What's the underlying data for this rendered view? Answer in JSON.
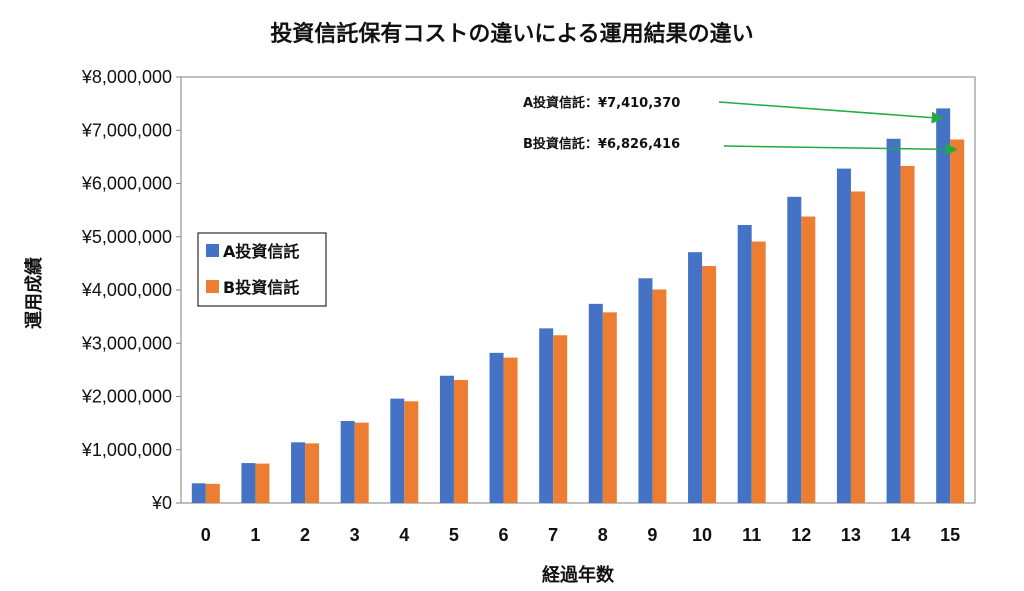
{
  "chart_data": {
    "type": "bar",
    "title": "投資信託保有コストの違いによる運用結果の違い",
    "xlabel": "経過年数",
    "ylabel": "運用成績",
    "categories": [
      "0",
      "1",
      "2",
      "3",
      "4",
      "5",
      "6",
      "7",
      "8",
      "9",
      "10",
      "11",
      "12",
      "13",
      "14",
      "15"
    ],
    "series": [
      {
        "name": "A投資信託",
        "color": "#4472C4",
        "values": [
          370000,
          750000,
          1140000,
          1540000,
          1960000,
          2390000,
          2820000,
          3280000,
          3740000,
          4220000,
          4710000,
          5220000,
          5750000,
          6280000,
          6840000,
          7410370
        ]
      },
      {
        "name": "B投資信託",
        "color": "#ED7D31",
        "values": [
          360000,
          740000,
          1120000,
          1510000,
          1910000,
          2310000,
          2730000,
          3150000,
          3580000,
          4010000,
          4450000,
          4910000,
          5380000,
          5850000,
          6330000,
          6826416
        ]
      }
    ],
    "ylim": [
      0,
      8000000
    ],
    "yticks": [
      0,
      1000000,
      2000000,
      3000000,
      4000000,
      5000000,
      6000000,
      7000000,
      8000000
    ],
    "ytick_labels": [
      "¥0",
      "¥1,000,000",
      "¥2,000,000",
      "¥3,000,000",
      "¥4,000,000",
      "¥5,000,000",
      "¥6,000,000",
      "¥7,000,000",
      "¥8,000,000"
    ],
    "grid": false,
    "legend_position": "left-middle",
    "annotations": [
      {
        "text": "A投資信託：¥7,410,370",
        "target_series": 0,
        "target_index": 15,
        "arrow_color": "#22AA44"
      },
      {
        "text": "B投資信託：¥6,826,416",
        "target_series": 1,
        "target_index": 15,
        "arrow_color": "#22AA44"
      }
    ]
  }
}
